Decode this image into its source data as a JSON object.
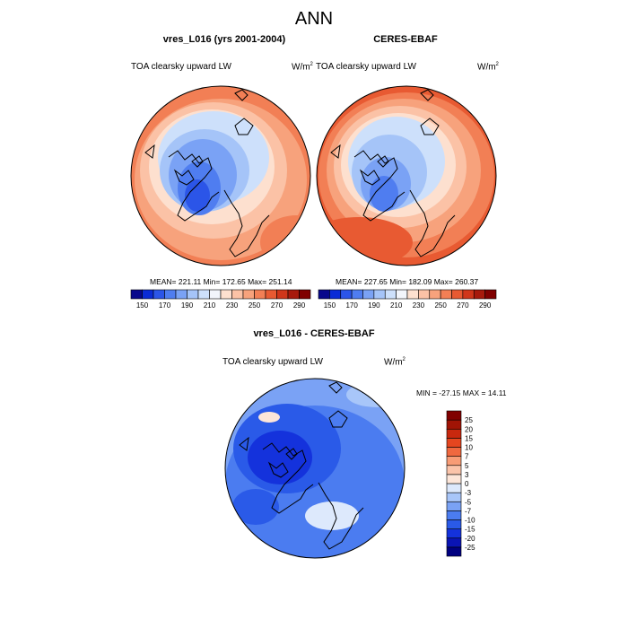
{
  "page_title": "ANN",
  "chart_data": [
    {
      "type": "heatmap",
      "projection": "north-polar-stereographic",
      "title": "vres_L016 (yrs 2001-2004)",
      "left_label": "TOA clearsky upward LW",
      "units_base": "W/m",
      "units_exp": "2",
      "stats": {
        "mean_label": "MEAN=",
        "mean": "221.11",
        "min_label": "Min=",
        "min": "172.65",
        "max_label": "Max=",
        "max": "251.14"
      },
      "colorbar": {
        "orientation": "horizontal",
        "levels": [
          150,
          160,
          170,
          180,
          190,
          200,
          210,
          220,
          230,
          240,
          250,
          260,
          270,
          280,
          290
        ],
        "tick_labels": [
          "150",
          "170",
          "190",
          "210",
          "230",
          "250",
          "270",
          "290"
        ],
        "colors": [
          "#08088c",
          "#0a2bd6",
          "#2b55e8",
          "#4f7df0",
          "#7aa2f5",
          "#a5c4f8",
          "#cde0fb",
          "#f2f5fb",
          "#fde0cf",
          "#fbc2a6",
          "#f7a27c",
          "#f27f55",
          "#e85a32",
          "#d0361a",
          "#a71a0c",
          "#800000"
        ]
      }
    },
    {
      "type": "heatmap",
      "projection": "north-polar-stereographic",
      "title": "CERES-EBAF",
      "left_label": "TOA clearsky upward LW",
      "units_base": "W/m",
      "units_exp": "2",
      "stats": {
        "mean_label": "MEAN=",
        "mean": "227.65",
        "min_label": "Min=",
        "min": "182.09",
        "max_label": "Max=",
        "max": "260.37"
      },
      "colorbar": {
        "orientation": "horizontal",
        "levels": [
          150,
          160,
          170,
          180,
          190,
          200,
          210,
          220,
          230,
          240,
          250,
          260,
          270,
          280,
          290
        ],
        "tick_labels": [
          "150",
          "170",
          "190",
          "210",
          "230",
          "250",
          "270",
          "290"
        ],
        "colors": [
          "#08088c",
          "#0a2bd6",
          "#2b55e8",
          "#4f7df0",
          "#7aa2f5",
          "#a5c4f8",
          "#cde0fb",
          "#f2f5fb",
          "#fde0cf",
          "#fbc2a6",
          "#f7a27c",
          "#f27f55",
          "#e85a32",
          "#d0361a",
          "#a71a0c",
          "#800000"
        ]
      }
    },
    {
      "type": "heatmap",
      "projection": "north-polar-stereographic",
      "title": "vres_L016 - CERES-EBAF",
      "left_label": "TOA clearsky upward LW",
      "units_base": "W/m",
      "units_exp": "2",
      "stats": {
        "min_label": "MIN =",
        "min": "-27.15",
        "max_label": "MAX =",
        "max": "14.11"
      },
      "colorbar": {
        "orientation": "vertical",
        "levels": [
          -25,
          -20,
          -15,
          -10,
          -7,
          -5,
          -3,
          0,
          3,
          5,
          7,
          10,
          15,
          20,
          25
        ],
        "tick_labels": [
          "-25",
          "-20",
          "-15",
          "-10",
          "-7",
          "-5",
          "-3",
          "0",
          "3",
          "5",
          "7",
          "10",
          "15",
          "20",
          "25"
        ],
        "colors": [
          "#000080",
          "#0a14b4",
          "#1432dc",
          "#2a5ae8",
          "#4b7cf0",
          "#7aa2f5",
          "#a8c6f9",
          "#dde9fc",
          "#fde6d9",
          "#fbc4aa",
          "#f89c76",
          "#f0683f",
          "#e5461f",
          "#c8280e",
          "#a01405",
          "#800000"
        ]
      }
    }
  ]
}
